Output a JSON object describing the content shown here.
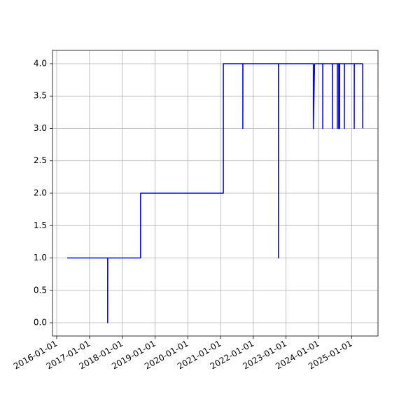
{
  "chart_data": {
    "type": "line",
    "x": [
      "2016-04-27",
      "2017-07-22",
      "2017-07-22",
      "2017-07-23",
      "2018-07-24",
      "2018-07-24",
      "2021-02-01",
      "2021-02-01",
      "2021-09-06",
      "2021-09-06",
      "2021-09-07",
      "2022-10-08",
      "2022-10-08",
      "2022-10-09",
      "2023-11-01",
      "2023-11-01",
      "2023-11-15",
      "2024-02-14",
      "2024-02-14",
      "2024-02-15",
      "2024-06-01",
      "2024-06-01",
      "2024-06-02",
      "2024-07-25",
      "2024-07-25",
      "2024-07-26",
      "2024-08-10",
      "2024-08-10",
      "2024-08-11",
      "2024-08-20",
      "2024-08-20",
      "2024-08-21",
      "2024-10-12",
      "2024-10-12",
      "2024-10-13",
      "2025-01-30",
      "2025-01-30",
      "2025-01-31",
      "2025-05-04",
      "2025-05-04"
    ],
    "values": [
      1,
      1,
      0,
      1,
      1,
      2,
      2,
      4,
      4,
      3,
      4,
      4,
      1,
      4,
      4,
      3,
      4,
      4,
      3,
      4,
      4,
      3,
      4,
      4,
      3,
      4,
      4,
      3,
      4,
      4,
      3,
      4,
      4,
      3,
      4,
      4,
      3,
      4,
      4,
      3
    ],
    "color": "#0000ff",
    "xlim": [
      "2015-11-15",
      "2025-10-22"
    ],
    "xticks": [
      "2016-01-01",
      "2017-01-01",
      "2018-01-01",
      "2019-01-01",
      "2020-01-01",
      "2021-01-01",
      "2022-01-01",
      "2023-01-01",
      "2024-01-01",
      "2025-01-01"
    ],
    "ylim": [
      -0.205,
      4.205
    ],
    "yticks": [
      {
        "value": 0,
        "label": "0.0"
      },
      {
        "value": 0.5,
        "label": "0.5"
      },
      {
        "value": 1,
        "label": "1.0"
      },
      {
        "value": 1.5,
        "label": "1.5"
      },
      {
        "value": 2,
        "label": "2.0"
      },
      {
        "value": 2.5,
        "label": "2.5"
      },
      {
        "value": 3,
        "label": "3.0"
      },
      {
        "value": 3.5,
        "label": "3.5"
      },
      {
        "value": 4,
        "label": "4.0"
      }
    ],
    "grid": true
  }
}
